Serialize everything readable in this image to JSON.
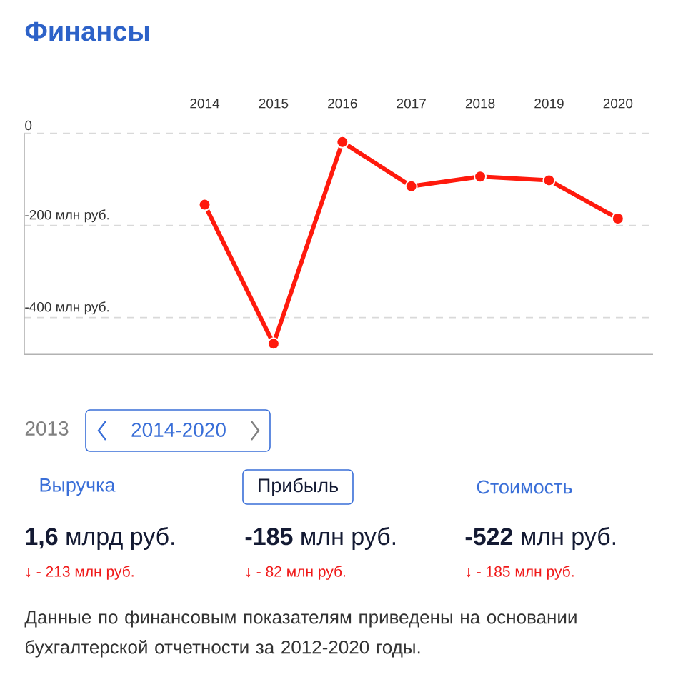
{
  "chart_data": {
    "type": "line",
    "title": "Финансы",
    "categories": [
      "2014",
      "2015",
      "2016",
      "2017",
      "2018",
      "2019",
      "2020"
    ],
    "values": [
      -155,
      -457,
      -19,
      -115,
      -94,
      -102,
      -185
    ],
    "color": "#ff1a0d",
    "marker": "circle",
    "line_style": "solid",
    "ylim": [
      -480,
      0
    ],
    "yticks": [
      0,
      {
        "value": -200,
        "label": "-200 млн руб."
      },
      {
        "value": -400,
        "label": "-400 млн руб."
      }
    ],
    "grid": "y",
    "annotations": [
      "2013",
      "2014-2020",
      "Выручка",
      "Прибыль",
      "Стоимость",
      "**1,6** млрд руб.",
      "**-185** млн руб.",
      "**-522** млн руб.",
      "↓ - 213 млн руб.",
      "↓ - 82 млн руб.",
      "↓ - 185 млн руб.",
      "Данные по финансовым показателям приведены на основании бухгалтерской отчетности за 2012-2020 годы."
    ]
  }
}
